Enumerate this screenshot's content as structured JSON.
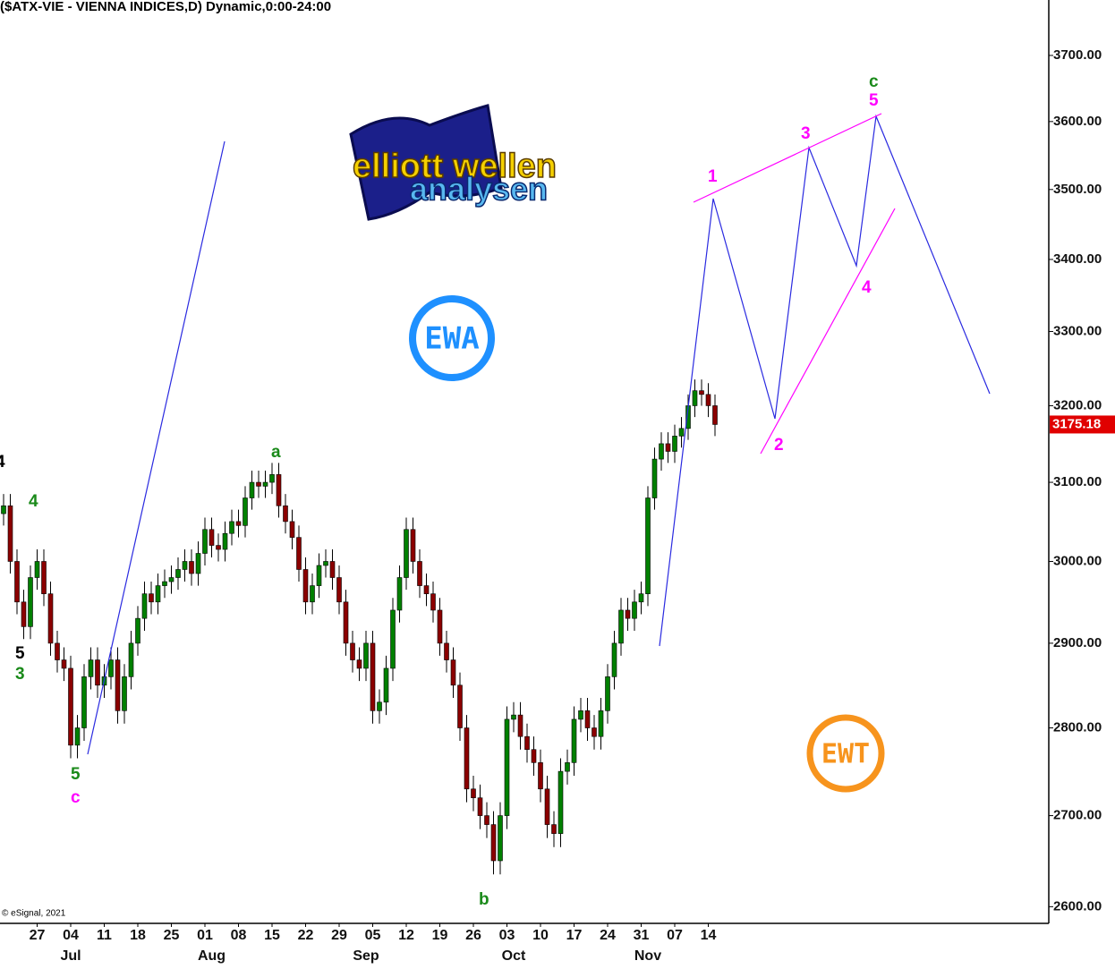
{
  "chart_data": {
    "type": "candlestick",
    "title": "($ATX-VIE - VIENNA INDICES,D) Dynamic,0:00-24:00",
    "credit": "© eSignal, 2021",
    "categories": [
      null,
      null,
      null,
      null,
      null,
      "27",
      null,
      null,
      null,
      null,
      "04",
      null,
      null,
      null,
      null,
      "11",
      null,
      null,
      null,
      null,
      "18",
      null,
      null,
      null,
      null,
      "25",
      null,
      null,
      null,
      null,
      "01",
      null,
      null,
      null,
      null,
      "08",
      null,
      null,
      null,
      null,
      "15",
      null,
      null,
      null,
      null,
      "22",
      null,
      null,
      null,
      null,
      "29",
      null,
      null,
      null,
      null,
      "05",
      null,
      null,
      null,
      null,
      "12",
      null,
      null,
      null,
      null,
      "19",
      null,
      null,
      null,
      null,
      "26",
      null,
      null,
      null,
      null,
      "03",
      null,
      null,
      null,
      null,
      "10",
      null,
      null,
      null,
      null,
      "17",
      null,
      null,
      null,
      null,
      "24",
      null,
      null,
      null,
      null,
      "31",
      null,
      null,
      null,
      null,
      "07",
      null,
      null,
      null,
      null,
      "14",
      null
    ],
    "months": [
      null,
      null,
      null,
      null,
      null,
      null,
      null,
      null,
      null,
      null,
      "Jul",
      null,
      null,
      null,
      null,
      null,
      null,
      null,
      null,
      null,
      null,
      null,
      null,
      null,
      null,
      null,
      null,
      null,
      null,
      null,
      null,
      "Aug",
      null,
      null,
      null,
      null,
      null,
      null,
      null,
      null,
      null,
      null,
      null,
      null,
      null,
      null,
      null,
      null,
      null,
      null,
      null,
      null,
      null,
      null,
      "Sep",
      null,
      null,
      null,
      null,
      null,
      null,
      null,
      null,
      null,
      null,
      null,
      null,
      null,
      null,
      null,
      null,
      null,
      null,
      null,
      null,
      null,
      "Oct",
      null,
      null,
      null,
      null,
      null,
      null,
      null,
      null,
      null,
      null,
      null,
      null,
      null,
      null,
      null,
      null,
      null,
      null,
      null,
      "Nov",
      null,
      null,
      null,
      null,
      null,
      null,
      null,
      null,
      null,
      null
    ],
    "open": [
      3060,
      3070,
      3000,
      2950,
      2920,
      2980,
      3000,
      2960,
      2900,
      2880,
      2870,
      2780,
      2800,
      2860,
      2880,
      2850,
      2860,
      2880,
      2820,
      2860,
      2900,
      2930,
      2960,
      2950,
      2970,
      2975,
      2980,
      2990,
      3000,
      2985,
      3010,
      3040,
      3020,
      3015,
      3035,
      3050,
      3045,
      3080,
      3100,
      3095,
      3100,
      3110,
      3070,
      3050,
      3030,
      2990,
      2950,
      2970,
      2995,
      3000,
      2980,
      2950,
      2900,
      2880,
      2870,
      2900,
      2820,
      2830,
      2870,
      2940,
      2980,
      3040,
      3000,
      2970,
      2960,
      2940,
      2900,
      2880,
      2850,
      2800,
      2730,
      2720,
      2700,
      2690,
      2650,
      2700,
      2810,
      2815,
      2790,
      2775,
      2760,
      2730,
      2690,
      2680,
      2750,
      2760,
      2810,
      2820,
      2800,
      2790,
      2820,
      2860,
      2900,
      2940,
      2930,
      2950,
      2960,
      3080,
      3130,
      3150,
      3140,
      3160,
      3170,
      3200,
      3220,
      3215,
      3200
    ],
    "high": [
      3085,
      3085,
      3015,
      2965,
      2995,
      3015,
      3015,
      2975,
      2915,
      2895,
      2885,
      2815,
      2875,
      2895,
      2895,
      2875,
      2895,
      2895,
      2875,
      2915,
      2945,
      2975,
      2975,
      2985,
      2990,
      2995,
      3005,
      3015,
      3015,
      3025,
      3055,
      3055,
      3035,
      3050,
      3065,
      3065,
      3095,
      3115,
      3115,
      3115,
      3125,
      3125,
      3085,
      3065,
      3045,
      3005,
      2985,
      3010,
      3015,
      3015,
      2995,
      2965,
      2915,
      2895,
      2915,
      2915,
      2845,
      2885,
      2955,
      2995,
      3055,
      3055,
      3015,
      2985,
      2975,
      2955,
      2915,
      2895,
      2865,
      2815,
      2745,
      2735,
      2715,
      2705,
      2715,
      2825,
      2830,
      2830,
      2805,
      2790,
      2775,
      2745,
      2705,
      2765,
      2775,
      2825,
      2835,
      2835,
      2815,
      2835,
      2875,
      2915,
      2955,
      2955,
      2965,
      2975,
      3095,
      3145,
      3165,
      3165,
      3175,
      3185,
      3215,
      3235,
      3235,
      3230,
      3215
    ],
    "low": [
      3045,
      2985,
      2935,
      2905,
      2905,
      2965,
      2945,
      2885,
      2865,
      2855,
      2765,
      2765,
      2785,
      2845,
      2835,
      2835,
      2845,
      2805,
      2805,
      2845,
      2885,
      2915,
      2935,
      2935,
      2955,
      2960,
      2965,
      2975,
      2970,
      2970,
      2995,
      3005,
      3000,
      3000,
      3020,
      3030,
      3030,
      3065,
      3080,
      3080,
      3085,
      3055,
      3035,
      3015,
      2975,
      2935,
      2935,
      2955,
      2980,
      2965,
      2935,
      2885,
      2865,
      2855,
      2855,
      2805,
      2805,
      2815,
      2855,
      2925,
      2965,
      2985,
      2955,
      2945,
      2925,
      2885,
      2865,
      2835,
      2785,
      2715,
      2705,
      2685,
      2675,
      2635,
      2635,
      2685,
      2795,
      2775,
      2760,
      2745,
      2715,
      2675,
      2665,
      2665,
      2735,
      2745,
      2795,
      2785,
      2775,
      2775,
      2805,
      2845,
      2885,
      2915,
      2915,
      2935,
      2945,
      3065,
      3115,
      3125,
      3125,
      3145,
      3155,
      3185,
      3200,
      3185,
      3160
    ],
    "close": [
      3070,
      3000,
      2950,
      2920,
      2980,
      3000,
      2960,
      2900,
      2880,
      2870,
      2780,
      2800,
      2860,
      2880,
      2850,
      2860,
      2880,
      2820,
      2860,
      2900,
      2930,
      2960,
      2950,
      2970,
      2975,
      2980,
      2990,
      3000,
      2985,
      3010,
      3040,
      3020,
      3015,
      3035,
      3050,
      3045,
      3080,
      3100,
      3095,
      3100,
      3110,
      3070,
      3050,
      3030,
      2990,
      2950,
      2970,
      2995,
      3000,
      2980,
      2950,
      2900,
      2880,
      2870,
      2900,
      2820,
      2830,
      2870,
      2940,
      2980,
      3040,
      3000,
      2970,
      2960,
      2940,
      2900,
      2880,
      2850,
      2800,
      2730,
      2720,
      2700,
      2690,
      2650,
      2700,
      2810,
      2815,
      2790,
      2775,
      2760,
      2730,
      2690,
      2680,
      2750,
      2760,
      2810,
      2820,
      2800,
      2790,
      2820,
      2860,
      2900,
      2940,
      2930,
      2950,
      2960,
      3080,
      3130,
      3150,
      3140,
      3160,
      3170,
      3200,
      3220,
      3215,
      3200,
      3175.18
    ],
    "up_color": "#008000",
    "down_color": "#8b0000",
    "log_scale": true,
    "ylim": [
      2584,
      3786
    ],
    "yticks": [
      {
        "value": 2600,
        "label": "2600.00"
      },
      {
        "value": 2700,
        "label": "2700.00"
      },
      {
        "value": 2800,
        "label": "2800.00"
      },
      {
        "value": 2900,
        "label": "2900.00"
      },
      {
        "value": 3000,
        "label": "3000.00"
      },
      {
        "value": 3100,
        "label": "3100.00"
      },
      {
        "value": 3200,
        "label": "3200.00"
      },
      {
        "value": 3300,
        "label": "3300.00"
      },
      {
        "value": 3400,
        "label": "3400.00"
      },
      {
        "value": 3500,
        "label": "3500.00"
      },
      {
        "value": 3600,
        "label": "3600.00"
      },
      {
        "value": 3700,
        "label": "3700.00"
      }
    ],
    "last_price": 3175.18,
    "wave_labels": [
      "4",
      "4",
      "5",
      "3",
      "5",
      "c",
      "a",
      "b",
      "c",
      "5",
      "1",
      "3",
      "4",
      "2"
    ]
  },
  "logos": {
    "brand_top": "elliott wellen",
    "brand_bottom": "analysen",
    "badge_left": "EWA",
    "badge_right": "EWT"
  }
}
